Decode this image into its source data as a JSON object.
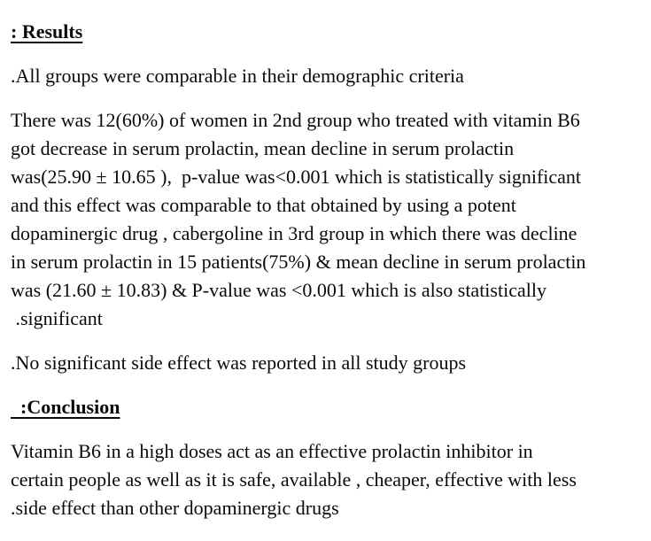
{
  "document": {
    "colors": {
      "background": "#ffffff",
      "text": "#0a0a0a"
    },
    "results": {
      "heading": ": Results",
      "demographics_line": ".All groups were comparable in their demographic criteria",
      "main_paragraph_lines": [
        "There was 12(60%) of women in 2nd group who treated with vitamin B6",
        "got decrease in serum prolactin, mean decline in serum prolactin",
        "was(25.90 ± 10.65 ),  p-value was<0.001 which is statistically significant",
        "and this effect was comparable to that obtained by using a potent",
        "dopaminergic drug , cabergoline in 3rd group in which there was decline",
        "in serum prolactin in 15 patients(75%) & mean decline in serum prolactin",
        "was (21.60 ± 10.83) & P-value was <0.001 which is also statistically",
        " .significant"
      ],
      "side_effects_line": ".No significant side effect was reported in all study groups"
    },
    "conclusion": {
      "heading": "  :Conclusion",
      "paragraph_lines": [
        "Vitamin B6 in a high doses act as an effective prolactin inhibitor in",
        "certain people as well as it is safe, available , cheaper, effective with less",
        ".side effect than other dopaminergic drugs"
      ]
    }
  }
}
